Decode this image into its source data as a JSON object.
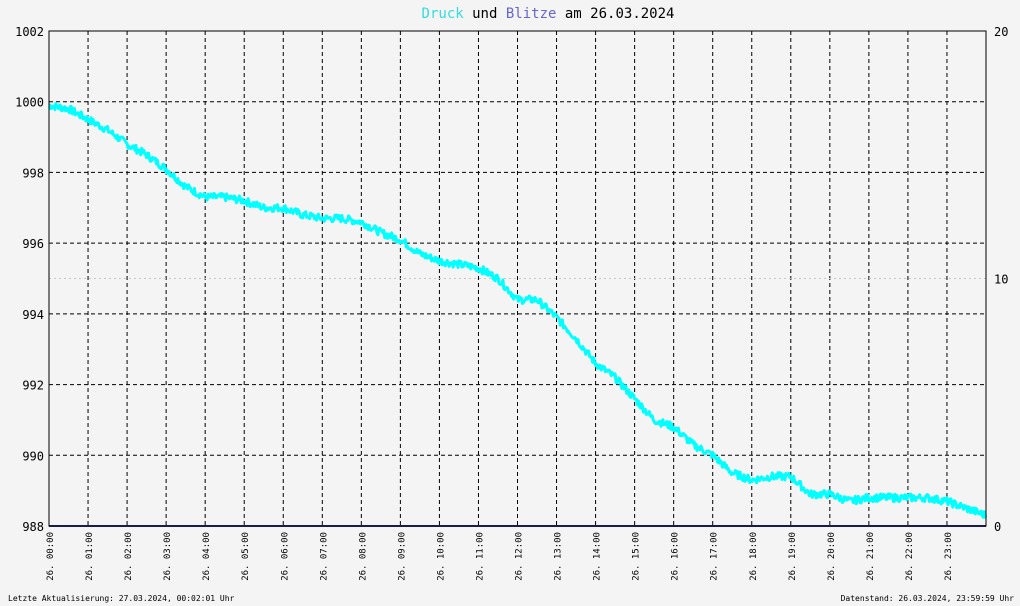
{
  "title": {
    "series1": "Druck",
    "connector": "und",
    "series2": "Blitze",
    "date_prefix": "am",
    "date": "26.03.2024"
  },
  "footer": {
    "left": "Letzte Aktualisierung: 27.03.2024, 00:02:01 Uhr",
    "right": "Datenstand: 26.03.2024, 23:59:59 Uhr"
  },
  "colors": {
    "druck": "#00ffff",
    "blitze": "#333399",
    "grid": "#000000",
    "background": "#f4f4f4"
  },
  "chart_data": {
    "type": "line",
    "title": "Druck und Blitze am 26.03.2024",
    "x_tick_labels": [
      "26. 00:00",
      "26. 01:00",
      "26. 02:00",
      "26. 03:00",
      "26. 04:00",
      "26. 05:00",
      "26. 06:00",
      "26. 07:00",
      "26. 08:00",
      "26. 09:00",
      "26. 10:00",
      "26. 11:00",
      "26. 12:00",
      "26. 13:00",
      "26. 14:00",
      "26. 15:00",
      "26. 16:00",
      "26. 17:00",
      "26. 18:00",
      "26. 19:00",
      "26. 20:00",
      "26. 21:00",
      "26. 22:00",
      "26. 23:00"
    ],
    "xlim": [
      0,
      24
    ],
    "y_left": {
      "lim": [
        988,
        1002
      ],
      "ticks": [
        988,
        990,
        992,
        994,
        996,
        998,
        1000,
        1002
      ]
    },
    "y_right": {
      "lim": [
        0,
        20
      ],
      "ticks": [
        0,
        10,
        20
      ]
    },
    "grid": true,
    "series": [
      {
        "name": "Druck",
        "axis": "left",
        "x": [
          0,
          0.5,
          1,
          1.5,
          2,
          2.5,
          3,
          3.5,
          4,
          4.5,
          5,
          5.5,
          6,
          6.5,
          7,
          7.5,
          8,
          8.5,
          9,
          9.5,
          10,
          10.5,
          11,
          11.5,
          12,
          12.5,
          13,
          13.5,
          14,
          14.5,
          15,
          15.5,
          16,
          16.5,
          17,
          17.5,
          18,
          18.5,
          19,
          19.5,
          20,
          20.5,
          21,
          21.5,
          22,
          22.5,
          23,
          23.5,
          24
        ],
        "values": [
          999.9,
          999.8,
          999.5,
          999.2,
          998.8,
          998.5,
          998.1,
          997.6,
          997.3,
          997.3,
          997.2,
          997.0,
          997.0,
          996.8,
          996.7,
          996.7,
          996.6,
          996.3,
          996.1,
          995.7,
          995.5,
          995.4,
          995.3,
          995.0,
          994.4,
          994.4,
          993.9,
          993.3,
          992.6,
          992.2,
          991.6,
          991.0,
          990.8,
          990.3,
          990.0,
          989.5,
          989.3,
          989.4,
          989.4,
          988.9,
          988.9,
          988.7,
          988.8,
          988.8,
          988.8,
          988.8,
          988.7,
          988.5,
          988.3
        ]
      },
      {
        "name": "Blitze",
        "axis": "right",
        "x": [
          0,
          24
        ],
        "values": [
          0,
          0
        ]
      }
    ]
  }
}
